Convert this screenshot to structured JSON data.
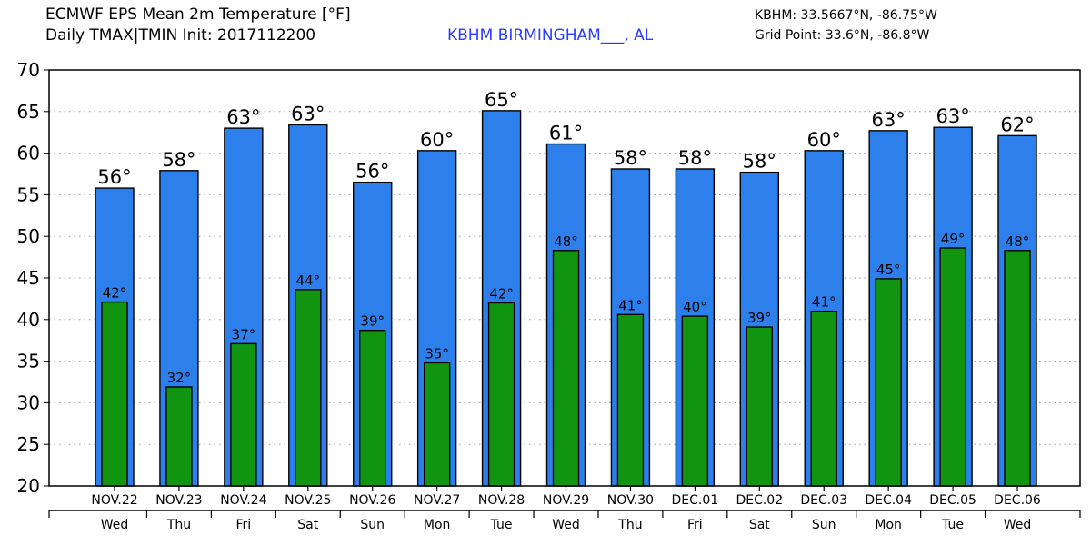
{
  "header": {
    "title_line1": "ECMWF EPS Mean 2m Temperature [°F]",
    "title_line2": "Daily TMAX|TMIN Init: 2017112200",
    "station": "KBHM BIRMINGHAM___, AL",
    "station_coords": "KBHM: 33.5667°N, -86.75°W",
    "grid_point": "Grid Point: 33.6°N, -86.8°W"
  },
  "colors": {
    "tmax_bar": "#2d80ec",
    "tmin_bar": "#119511",
    "grid": "#999999",
    "station_text": "#2a3cff"
  },
  "chart_data": {
    "type": "bar",
    "categories": [
      "NOV.22",
      "NOV.23",
      "NOV.24",
      "NOV.25",
      "NOV.26",
      "NOV.27",
      "NOV.28",
      "NOV.29",
      "NOV.30",
      "DEC.01",
      "DEC.02",
      "DEC.03",
      "DEC.04",
      "DEC.05",
      "DEC.06"
    ],
    "weekdays": [
      "Wed",
      "Thu",
      "Fri",
      "Sat",
      "Sun",
      "Mon",
      "Tue",
      "Wed",
      "Thu",
      "Fri",
      "Sat",
      "Sun",
      "Mon",
      "Tue",
      "Wed"
    ],
    "series": [
      {
        "key": "tmax",
        "values": [
          55.8,
          57.9,
          63.0,
          63.4,
          56.5,
          60.3,
          65.1,
          61.1,
          58.1,
          58.1,
          57.7,
          60.3,
          62.7,
          63.1,
          62.1
        ],
        "labels": [
          "56°",
          "58°",
          "63°",
          "63°",
          "56°",
          "60°",
          "65°",
          "61°",
          "58°",
          "58°",
          "58°",
          "60°",
          "63°",
          "63°",
          "62°"
        ]
      },
      {
        "key": "tmin",
        "values": [
          42.1,
          31.9,
          37.1,
          43.6,
          38.7,
          34.8,
          42.0,
          48.3,
          40.6,
          40.4,
          39.1,
          41.0,
          44.9,
          48.6,
          48.3
        ],
        "labels": [
          "42°",
          "32°",
          "37°",
          "44°",
          "39°",
          "35°",
          "42°",
          "48°",
          "41°",
          "40°",
          "39°",
          "41°",
          "45°",
          "49°",
          "48°"
        ]
      }
    ],
    "ylim": [
      20,
      70
    ],
    "yticks": [
      20,
      25,
      30,
      35,
      40,
      45,
      50,
      55,
      60,
      65,
      70
    ],
    "grid": true
  }
}
